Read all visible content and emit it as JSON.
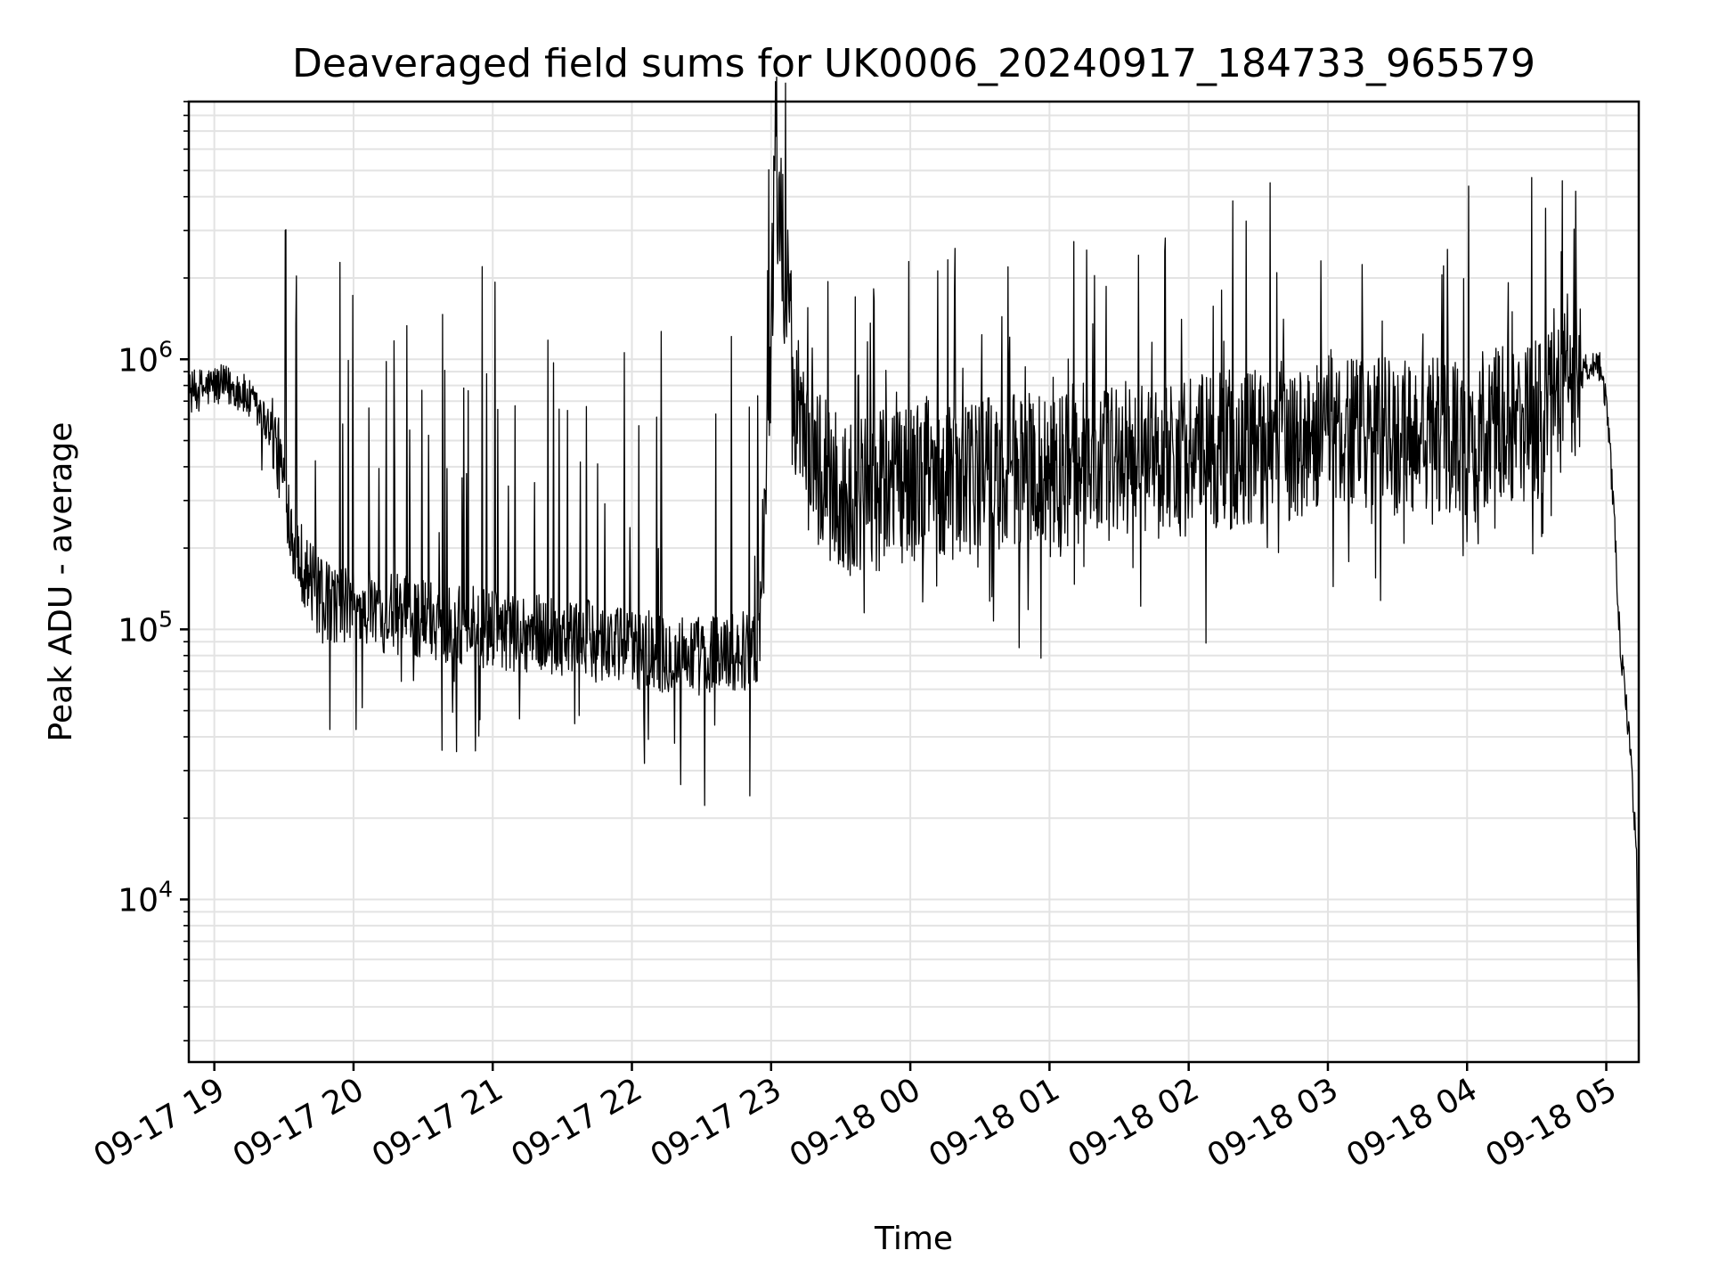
{
  "chart_data": {
    "type": "line",
    "title": "Deaveraged field sums for UK0006_20240917_184733_965579",
    "xlabel": "Time",
    "ylabel": "Peak ADU - average",
    "yscale": "log",
    "ylim": [
      2500,
      9000000
    ],
    "xlim": [
      "2024-09-17 18:49",
      "2024-09-18 05:14"
    ],
    "grid": "major and minor, both axes",
    "line_color": "#000000",
    "x_ticks": [
      "09-17 19",
      "09-17 20",
      "09-17 21",
      "09-17 22",
      "09-17 23",
      "09-18 00",
      "09-18 01",
      "09-18 02",
      "09-18 03",
      "09-18 04",
      "09-18 05"
    ],
    "y_ticks": [
      {
        "value": 10000,
        "base": "10",
        "exp": "4"
      },
      {
        "value": 100000,
        "base": "10",
        "exp": "5"
      },
      {
        "value": 1000000,
        "base": "10",
        "exp": "6"
      }
    ],
    "series": [
      {
        "x": [
          "2024-09-17 18:49",
          "2024-09-17 19:00",
          "2024-09-17 19:10",
          "2024-09-17 19:15",
          "2024-09-17 19:25",
          "2024-09-17 19:30",
          "2024-09-17 19:35",
          "2024-09-17 19:45",
          "2024-09-17 20:00",
          "2024-09-17 20:30",
          "2024-09-17 21:00",
          "2024-09-17 21:30",
          "2024-09-17 22:00",
          "2024-09-17 22:30",
          "2024-09-17 22:55",
          "2024-09-17 23:00",
          "2024-09-17 23:02",
          "2024-09-17 23:05",
          "2024-09-17 23:08",
          "2024-09-17 23:12",
          "2024-09-17 23:30",
          "2024-09-18 00:00",
          "2024-09-18 00:30",
          "2024-09-18 01:00",
          "2024-09-18 01:30",
          "2024-09-18 02:00",
          "2024-09-18 02:30",
          "2024-09-18 03:00",
          "2024-09-18 03:30",
          "2024-09-18 04:00",
          "2024-09-18 04:30",
          "2024-09-18 04:45",
          "2024-09-18 04:55",
          "2024-09-18 04:58",
          "2024-09-18 05:00",
          "2024-09-18 05:03",
          "2024-09-18 05:06",
          "2024-09-18 05:10",
          "2024-09-18 05:13",
          "2024-09-18 05:14"
        ],
        "y": [
          750000,
          800000,
          780000,
          700000,
          550000,
          350000,
          200000,
          130000,
          120000,
          110000,
          100000,
          95000,
          85000,
          80000,
          85000,
          1200000,
          6500000,
          2500000,
          1300000,
          500000,
          300000,
          350000,
          380000,
          400000,
          420000,
          440000,
          480000,
          520000,
          510000,
          520000,
          600000,
          800000,
          1000000,
          900000,
          700000,
          300000,
          85000,
          40000,
          15000,
          3500
        ]
      }
    ]
  }
}
